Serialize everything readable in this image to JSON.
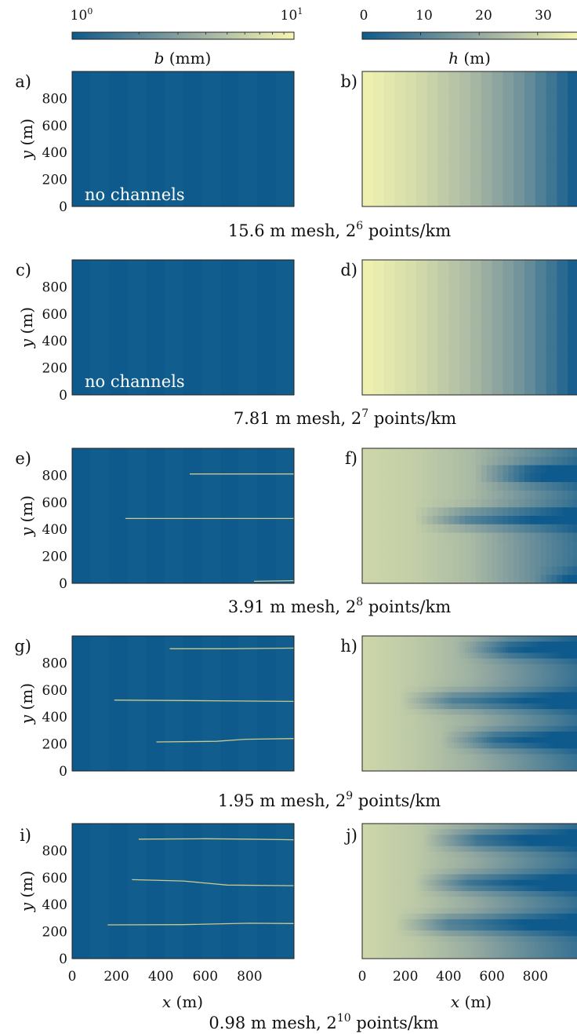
{
  "colors": {
    "low": "#0f5a8c",
    "high": "#f7f7b0",
    "channel": "#c9c98a",
    "panel_text": "#ffffff"
  },
  "colorbars": {
    "b": {
      "label_var": "b",
      "label_unit": " (mm)",
      "ticks": [
        {
          "base": "10",
          "exp": "0",
          "value": 1
        },
        {
          "base": "10",
          "exp": "1",
          "value": 10
        }
      ],
      "scale": "log",
      "range": [
        1,
        10
      ]
    },
    "h": {
      "label_var": "h",
      "label_unit": " (m)",
      "ticks": [
        {
          "text": "0",
          "value": 0
        },
        {
          "text": "10",
          "value": 10
        },
        {
          "text": "20",
          "value": 20
        },
        {
          "text": "30",
          "value": 30
        }
      ],
      "range": [
        0,
        37
      ]
    }
  },
  "axes": {
    "y_label_var": "y",
    "y_label_unit": " (m)",
    "x_label_var": "x",
    "x_label_unit": " (m)",
    "y_ticks": [
      "0",
      "200",
      "400",
      "600",
      "800"
    ],
    "x_ticks": [
      "0",
      "200",
      "400",
      "600",
      "800"
    ],
    "xlim": [
      0,
      1000
    ],
    "ylim": [
      0,
      1000
    ]
  },
  "no_channels_text": "no channels",
  "rows": [
    {
      "left": "a)",
      "right": "b)",
      "caption_pre": "15.6 m mesh, 2",
      "caption_exp": "6",
      "caption_post": " points/km"
    },
    {
      "left": "c)",
      "right": "d)",
      "caption_pre": "7.81 m mesh, 2",
      "caption_exp": "7",
      "caption_post": " points/km"
    },
    {
      "left": "e)",
      "right": "f)",
      "caption_pre": "3.91 m mesh, 2",
      "caption_exp": "8",
      "caption_post": " points/km"
    },
    {
      "left": "g)",
      "right": "h)",
      "caption_pre": "1.95 m mesh, 2",
      "caption_exp": "9",
      "caption_post": " points/km"
    },
    {
      "left": "i)",
      "right": "j)",
      "caption_pre": "0.98 m mesh, 2",
      "caption_exp": "10",
      "caption_post": " points/km"
    }
  ],
  "chart_data": [
    {
      "type": "heatmap",
      "panel": "a)",
      "quantity": "b (mm)",
      "xlabel": "",
      "ylabel": "y (m)",
      "xlim": [
        0,
        1000
      ],
      "ylim": [
        0,
        1000
      ],
      "annotation": "no channels",
      "channels": []
    },
    {
      "type": "heatmap",
      "panel": "b)",
      "quantity": "h (m)",
      "xlim": [
        0,
        1000
      ],
      "ylim": [
        0,
        1000
      ],
      "columns": 20,
      "h_profile_x": [
        0,
        250,
        500,
        750,
        1000
      ],
      "h_profile": [
        36,
        31,
        24,
        14,
        0
      ],
      "troughs": []
    },
    {
      "type": "heatmap",
      "panel": "c)",
      "quantity": "b (mm)",
      "xlabel": "",
      "ylabel": "y (m)",
      "xlim": [
        0,
        1000
      ],
      "ylim": [
        0,
        1000
      ],
      "annotation": "no channels",
      "channels": []
    },
    {
      "type": "heatmap",
      "panel": "d)",
      "quantity": "h (m)",
      "xlim": [
        0,
        1000
      ],
      "ylim": [
        0,
        1000
      ],
      "columns": 20,
      "h_profile_x": [
        0,
        250,
        500,
        750,
        1000
      ],
      "h_profile": [
        36,
        31,
        24,
        14,
        0
      ],
      "troughs": []
    },
    {
      "type": "heatmap",
      "panel": "e)",
      "quantity": "b (mm)",
      "xlabel": "",
      "ylabel": "y (m)",
      "xlim": [
        0,
        1000
      ],
      "ylim": [
        0,
        1000
      ],
      "channels": [
        {
          "x": [
            530,
            1000
          ],
          "y": [
            810,
            810
          ]
        },
        {
          "x": [
            240,
            1000
          ],
          "y": [
            480,
            480
          ]
        },
        {
          "x": [
            820,
            1000
          ],
          "y": [
            15,
            20
          ]
        }
      ]
    },
    {
      "type": "heatmap",
      "panel": "f)",
      "quantity": "h (m)",
      "xlim": [
        0,
        1000
      ],
      "ylim": [
        0,
        1000
      ],
      "columns": 40,
      "h_profile_x": [
        0,
        250,
        500,
        750,
        1000
      ],
      "h_profile": [
        30,
        28,
        24,
        15,
        6
      ],
      "troughs": [
        {
          "y": 810,
          "x_start": 520
        },
        {
          "y": 480,
          "x_start": 240
        },
        {
          "y": 20,
          "x_start": 800
        }
      ]
    },
    {
      "type": "heatmap",
      "panel": "g)",
      "quantity": "b (mm)",
      "xlabel": "",
      "ylabel": "y (m)",
      "xlim": [
        0,
        1000
      ],
      "ylim": [
        0,
        1000
      ],
      "channels": [
        {
          "x": [
            440,
            700,
            1000
          ],
          "y": [
            905,
            905,
            910
          ]
        },
        {
          "x": [
            190,
            650,
            1000
          ],
          "y": [
            525,
            520,
            515
          ]
        },
        {
          "x": [
            380,
            650,
            780,
            1000
          ],
          "y": [
            215,
            220,
            235,
            240
          ]
        }
      ]
    },
    {
      "type": "heatmap",
      "panel": "h)",
      "quantity": "h (m)",
      "xlim": [
        0,
        1000
      ],
      "ylim": [
        0,
        1000
      ],
      "columns": 80,
      "h_profile_x": [
        0,
        250,
        500,
        750,
        1000
      ],
      "h_profile": [
        30,
        27,
        22,
        14,
        6
      ],
      "troughs": [
        {
          "y": 905,
          "x_start": 430
        },
        {
          "y": 520,
          "x_start": 170
        },
        {
          "y": 230,
          "x_start": 360
        }
      ]
    },
    {
      "type": "heatmap",
      "panel": "i)",
      "quantity": "b (mm)",
      "xlabel": "x (m)",
      "ylabel": "y (m)",
      "xlim": [
        0,
        1000
      ],
      "ylim": [
        0,
        1000
      ],
      "channels": [
        {
          "x": [
            300,
            600,
            800,
            1000
          ],
          "y": [
            885,
            888,
            885,
            880
          ]
        },
        {
          "x": [
            270,
            500,
            700,
            1000
          ],
          "y": [
            585,
            575,
            545,
            540
          ]
        },
        {
          "x": [
            160,
            500,
            800,
            1000
          ],
          "y": [
            250,
            252,
            262,
            260
          ]
        }
      ]
    },
    {
      "type": "heatmap",
      "panel": "j)",
      "quantity": "h (m)",
      "xlabel": "x (m)",
      "xlim": [
        0,
        1000
      ],
      "ylim": [
        0,
        1000
      ],
      "columns": 160,
      "h_profile_x": [
        0,
        250,
        500,
        750,
        1000
      ],
      "h_profile": [
        30,
        27,
        21,
        13,
        6
      ],
      "troughs": [
        {
          "y": 880,
          "x_start": 280
        },
        {
          "y": 560,
          "x_start": 240
        },
        {
          "y": 255,
          "x_start": 150
        }
      ]
    }
  ]
}
